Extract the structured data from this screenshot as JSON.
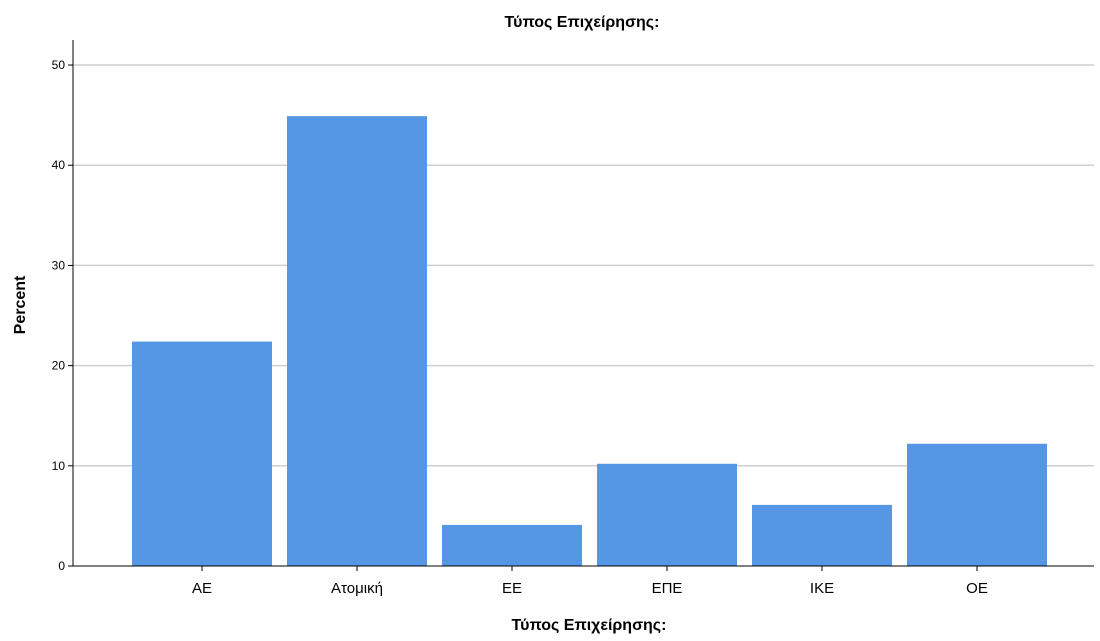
{
  "chart_data": {
    "type": "bar",
    "title": "Τύπος Επιχείρησης:",
    "xlabel": "Τύπος Επιχείρησης:",
    "ylabel": "Percent",
    "categories": [
      "ΑΕ",
      "Ατομική",
      "ΕΕ",
      "ΕΠΕ",
      "ΙΚΕ",
      "ΟΕ"
    ],
    "values": [
      22.4,
      44.9,
      4.1,
      10.2,
      6.1,
      12.2
    ],
    "ylim": [
      0,
      52.5
    ],
    "yticks": [
      0,
      10,
      20,
      30,
      40,
      50
    ],
    "grid": true,
    "legend": "none",
    "bar_color": "#5597e4",
    "grid_color": "#cfcfcf"
  }
}
